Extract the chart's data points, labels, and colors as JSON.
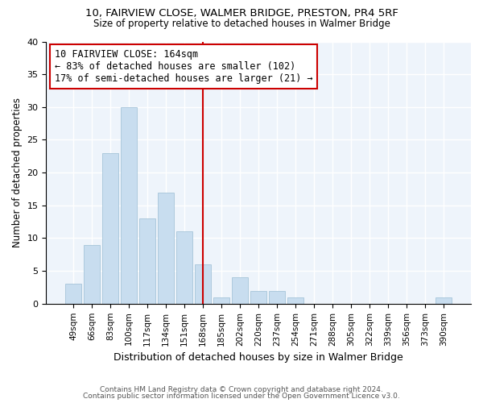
{
  "title1": "10, FAIRVIEW CLOSE, WALMER BRIDGE, PRESTON, PR4 5RF",
  "title2": "Size of property relative to detached houses in Walmer Bridge",
  "xlabel": "Distribution of detached houses by size in Walmer Bridge",
  "ylabel": "Number of detached properties",
  "categories": [
    "49sqm",
    "66sqm",
    "83sqm",
    "100sqm",
    "117sqm",
    "134sqm",
    "151sqm",
    "168sqm",
    "185sqm",
    "202sqm",
    "220sqm",
    "237sqm",
    "254sqm",
    "271sqm",
    "288sqm",
    "305sqm",
    "322sqm",
    "339sqm",
    "356sqm",
    "373sqm",
    "390sqm"
  ],
  "values": [
    3,
    9,
    23,
    30,
    13,
    17,
    11,
    6,
    1,
    4,
    2,
    2,
    1,
    0,
    0,
    0,
    0,
    0,
    0,
    0,
    1
  ],
  "bar_color": "#c8ddef",
  "bar_edgecolor": "#9bbdd4",
  "vline_color": "#cc0000",
  "vline_index": 7,
  "annotation_text": "10 FAIRVIEW CLOSE: 164sqm\n← 83% of detached houses are smaller (102)\n17% of semi-detached houses are larger (21) →",
  "annotation_border_color": "#cc0000",
  "annotation_bg_color": "white",
  "ylim": [
    0,
    40
  ],
  "yticks": [
    0,
    5,
    10,
    15,
    20,
    25,
    30,
    35,
    40
  ],
  "bg_color": "#eef4fb",
  "footer1": "Contains HM Land Registry data © Crown copyright and database right 2024.",
  "footer2": "Contains public sector information licensed under the Open Government Licence v3.0."
}
